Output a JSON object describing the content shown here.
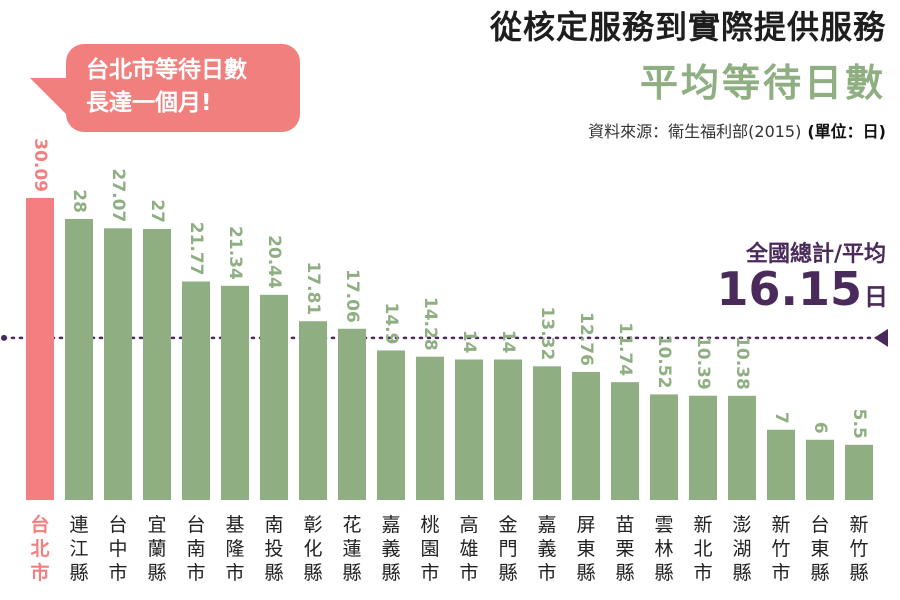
{
  "header": {
    "title": "從核定服務到實際提供服務",
    "subtitle": "平均等待日數",
    "source": "資料來源：衛生福利部(2015)",
    "unit": "(單位：日)"
  },
  "callout": {
    "line1": "台北市等待日數",
    "line2": "長達一個月!"
  },
  "average": {
    "label": "全國總計/平均",
    "value": "16.15",
    "unit": "日"
  },
  "colors": {
    "highlight": "#f37f80",
    "bar": "#8faf83",
    "average_line": "#4a2a5a",
    "callout": "#f07f7e"
  },
  "chart_data": {
    "type": "bar",
    "title": "平均等待日數",
    "categories": [
      "台北市",
      "連江縣",
      "台中市",
      "宜蘭縣",
      "台南市",
      "基隆市",
      "南投縣",
      "彰化縣",
      "花蓮縣",
      "嘉義縣",
      "桃園市",
      "高雄市",
      "金門縣",
      "嘉義市",
      "屏東縣",
      "苗栗縣",
      "雲林縣",
      "新北市",
      "澎湖縣",
      "新竹市",
      "台東縣",
      "新竹縣"
    ],
    "values": [
      30.09,
      28,
      27.07,
      27,
      21.77,
      21.34,
      20.44,
      17.81,
      17.06,
      14.9,
      14.28,
      14,
      14,
      13.32,
      12.76,
      11.74,
      10.52,
      10.39,
      10.38,
      7,
      6,
      5.5
    ],
    "value_labels": [
      "30.09",
      "28",
      "27.07",
      "27",
      "21.77",
      "21.34",
      "20.44",
      "17.81",
      "17.06",
      "14.9",
      "14.28",
      "14",
      "14",
      "13.32",
      "12.76",
      "11.74",
      "10.52",
      "10.39",
      "10.38",
      "7",
      "6",
      "5.5"
    ],
    "highlight_index": 0,
    "average": 16.15,
    "ylim": [
      0,
      30.09
    ],
    "grid": false,
    "legend": "none"
  }
}
